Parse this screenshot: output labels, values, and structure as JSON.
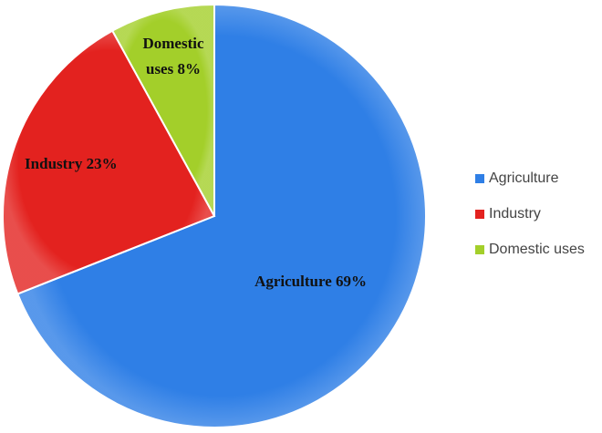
{
  "chart_data": {
    "type": "pie",
    "categories": [
      "Agriculture",
      "Industry",
      "Domestic uses"
    ],
    "values": [
      69,
      23,
      8
    ],
    "value_labels": [
      "Agriculture 69%",
      "Industry 23%",
      "Domestic uses 8%"
    ],
    "colors": [
      "#2f7fe6",
      "#e3221f",
      "#a3cf2a"
    ],
    "legend": "right"
  }
}
